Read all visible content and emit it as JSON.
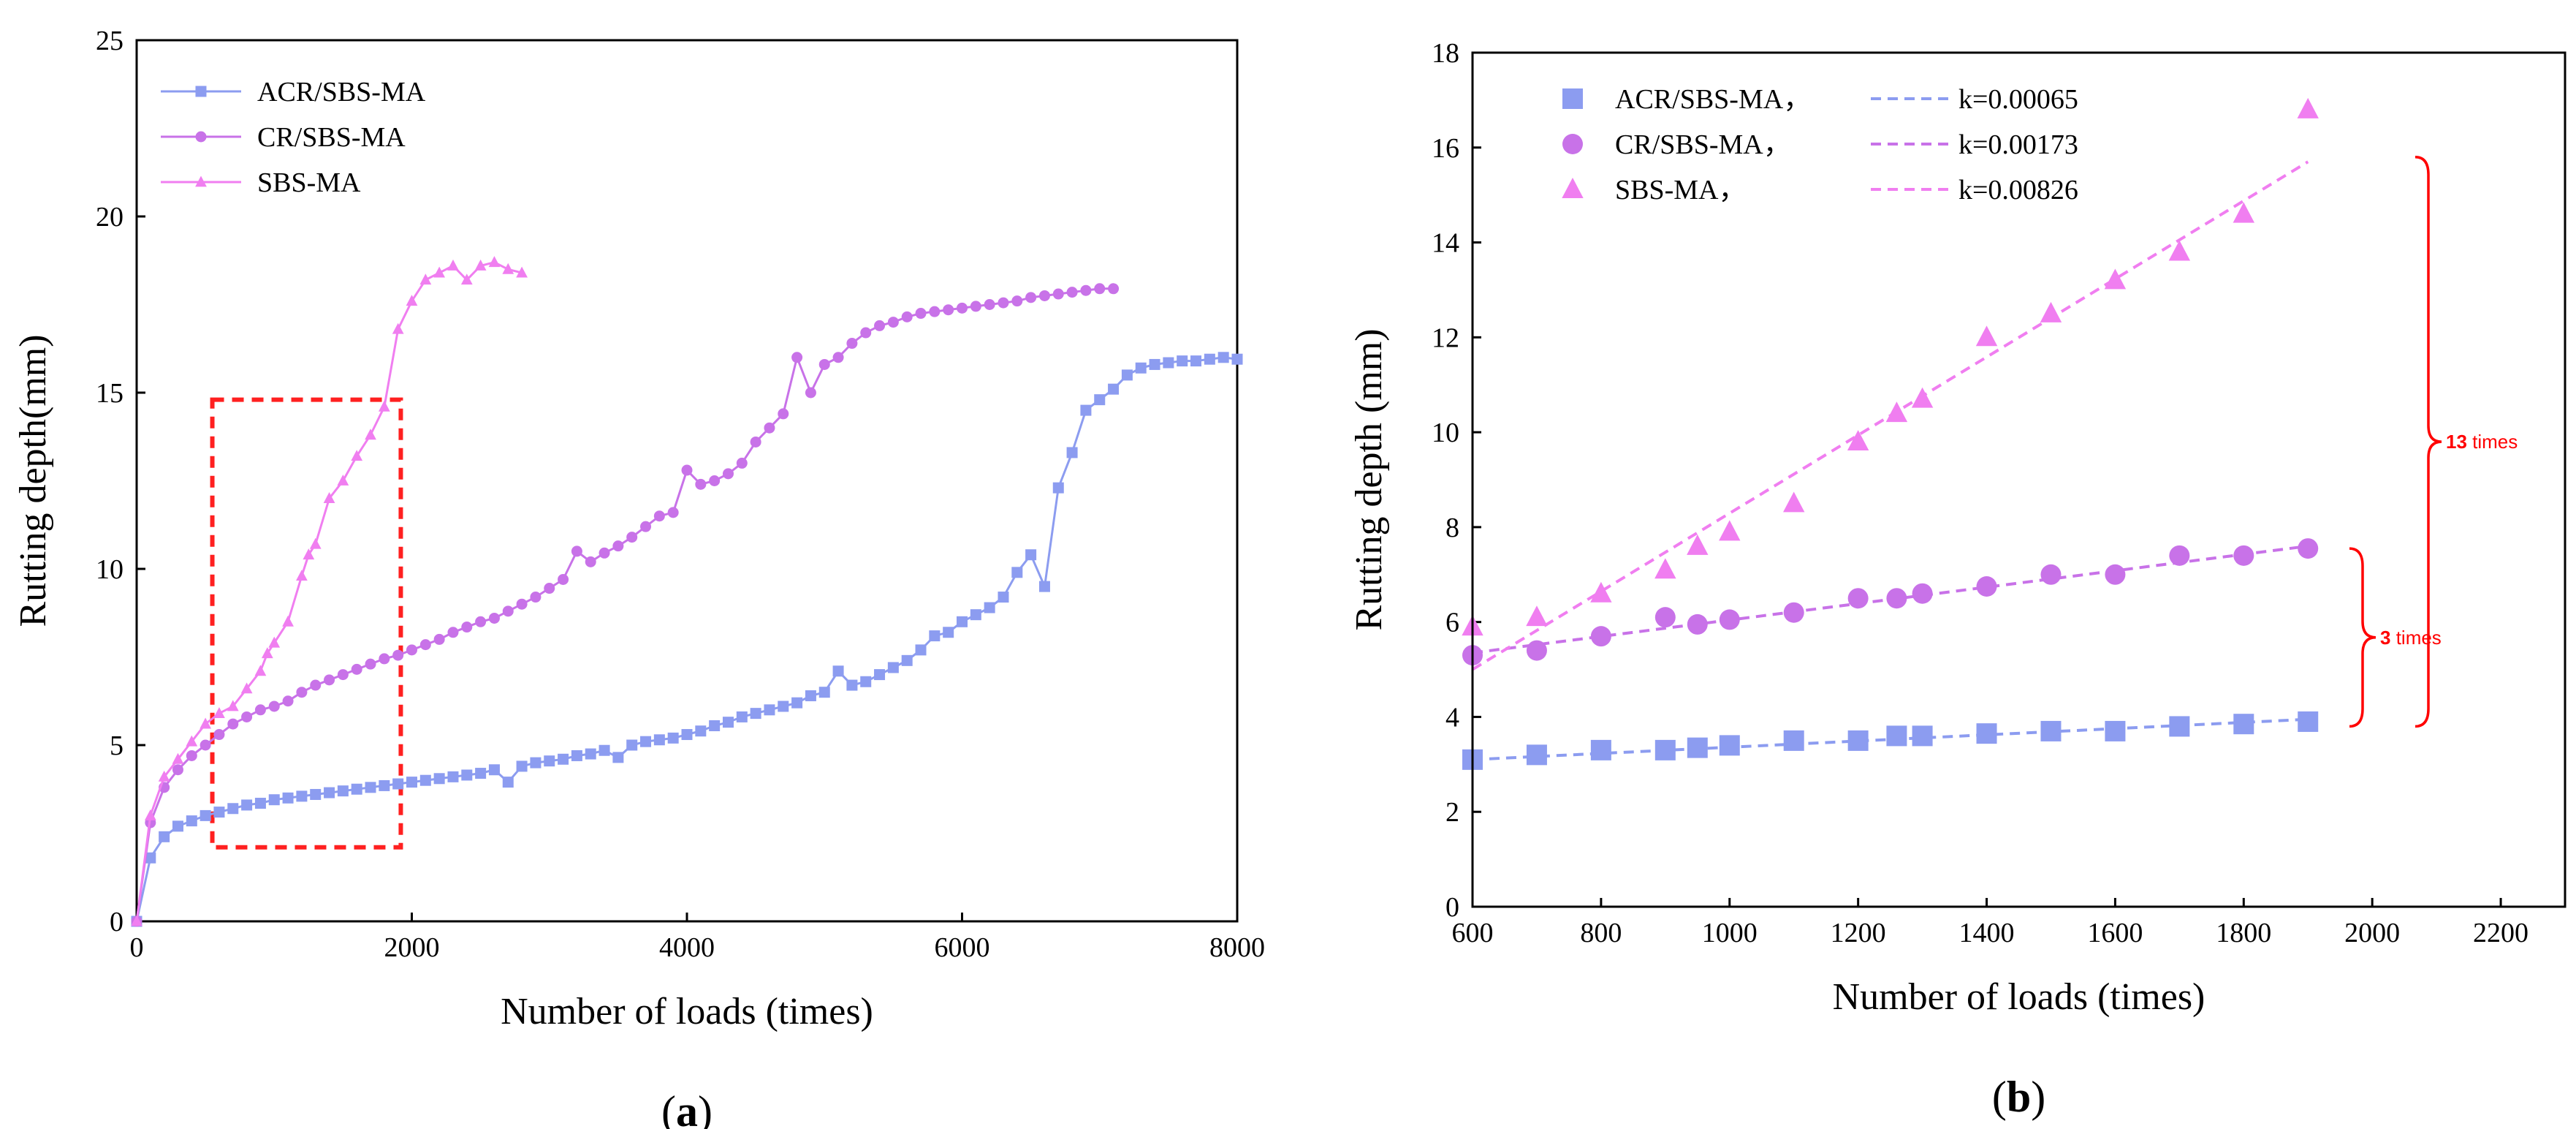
{
  "colors": {
    "acr": "#8c9cf0",
    "cr": "#c872e8",
    "sbs": "#f07ef0",
    "highlight": "#ff2020",
    "annotation": "#ff0000"
  },
  "chart_data": [
    {
      "type": "line",
      "panel_label_open": "(",
      "panel_label_letter": "a",
      "panel_label_close": ")",
      "xlabel": "Number of loads (times)",
      "ylabel": "Rutting depth(mm)",
      "xlim": [
        0,
        8000
      ],
      "ylim": [
        0,
        25
      ],
      "xticks": [
        0,
        2000,
        4000,
        6000,
        8000
      ],
      "yticks": [
        0,
        5,
        10,
        15,
        20,
        25
      ],
      "grid": false,
      "legend_placement": "top-left",
      "highlight_box": {
        "x": [
          550,
          1920
        ],
        "y": [
          2.1,
          14.8
        ]
      },
      "series": [
        {
          "name": "ACR/SBS-MA",
          "marker": "square",
          "x": [
            0,
            100,
            200,
            300,
            400,
            500,
            600,
            700,
            800,
            900,
            1000,
            1100,
            1200,
            1300,
            1400,
            1500,
            1600,
            1700,
            1800,
            1900,
            2000,
            2100,
            2200,
            2300,
            2400,
            2500,
            2600,
            2700,
            2800,
            2900,
            3000,
            3100,
            3200,
            3300,
            3400,
            3500,
            3600,
            3700,
            3800,
            3900,
            4000,
            4100,
            4200,
            4300,
            4400,
            4500,
            4600,
            4700,
            4800,
            4900,
            5000,
            5100,
            5200,
            5300,
            5400,
            5500,
            5600,
            5700,
            5800,
            5900,
            6000,
            6100,
            6200,
            6300,
            6400,
            6500,
            6600,
            6700,
            6800,
            6900,
            7000,
            7100,
            7200,
            7300,
            7400,
            7500,
            7600,
            7700,
            7800,
            7900,
            8000
          ],
          "y": [
            0,
            1.8,
            2.4,
            2.7,
            2.85,
            3.0,
            3.1,
            3.2,
            3.3,
            3.35,
            3.45,
            3.5,
            3.55,
            3.6,
            3.65,
            3.7,
            3.75,
            3.8,
            3.85,
            3.9,
            3.95,
            4.0,
            4.05,
            4.1,
            4.15,
            4.2,
            4.3,
            3.95,
            4.4,
            4.5,
            4.55,
            4.6,
            4.7,
            4.75,
            4.85,
            4.65,
            5.0,
            5.1,
            5.15,
            5.2,
            5.3,
            5.4,
            5.55,
            5.65,
            5.8,
            5.9,
            6.0,
            6.1,
            6.2,
            6.4,
            6.5,
            7.1,
            6.7,
            6.8,
            7.0,
            7.2,
            7.4,
            7.7,
            8.1,
            8.2,
            8.5,
            8.7,
            8.9,
            9.2,
            9.9,
            10.4,
            9.5,
            12.3,
            13.3,
            14.5,
            14.8,
            15.1,
            15.5,
            15.7,
            15.8,
            15.85,
            15.9,
            15.9,
            15.95,
            16.0,
            15.95
          ]
        },
        {
          "name": "CR/SBS-MA",
          "marker": "circle",
          "x": [
            0,
            100,
            200,
            300,
            400,
            500,
            600,
            700,
            800,
            900,
            1000,
            1100,
            1200,
            1300,
            1400,
            1500,
            1600,
            1700,
            1800,
            1900,
            2000,
            2100,
            2200,
            2300,
            2400,
            2500,
            2600,
            2700,
            2800,
            2900,
            3000,
            3100,
            3200,
            3300,
            3400,
            3500,
            3600,
            3700,
            3800,
            3900,
            4000,
            4100,
            4200,
            4300,
            4400,
            4500,
            4600,
            4700,
            4800,
            4900,
            5000,
            5100,
            5200,
            5300,
            5400,
            5500,
            5600,
            5700,
            5800,
            5900,
            6000,
            6100,
            6200,
            6300,
            6400,
            6500,
            6600,
            6700,
            6800,
            6900,
            7000,
            7100
          ],
          "y": [
            0,
            2.8,
            3.8,
            4.3,
            4.7,
            5.0,
            5.3,
            5.6,
            5.8,
            6.0,
            6.1,
            6.25,
            6.5,
            6.7,
            6.85,
            7.0,
            7.15,
            7.3,
            7.45,
            7.55,
            7.7,
            7.85,
            8.0,
            8.2,
            8.35,
            8.5,
            8.6,
            8.8,
            9.0,
            9.2,
            9.45,
            9.7,
            10.5,
            10.2,
            10.45,
            10.65,
            10.9,
            11.2,
            11.5,
            11.6,
            12.8,
            12.4,
            12.5,
            12.7,
            13.0,
            13.6,
            14.0,
            14.4,
            16.0,
            15.0,
            15.8,
            16.0,
            16.4,
            16.7,
            16.9,
            17.0,
            17.15,
            17.25,
            17.3,
            17.35,
            17.4,
            17.45,
            17.5,
            17.55,
            17.6,
            17.7,
            17.75,
            17.8,
            17.85,
            17.9,
            17.95,
            17.95
          ]
        },
        {
          "name": "SBS-MA",
          "marker": "triangle",
          "x": [
            0,
            100,
            200,
            300,
            400,
            500,
            600,
            700,
            800,
            900,
            950,
            1000,
            1100,
            1200,
            1250,
            1300,
            1400,
            1500,
            1600,
            1700,
            1800,
            1900,
            2000,
            2100,
            2200,
            2300,
            2400,
            2500,
            2600,
            2700,
            2800
          ],
          "y": [
            0,
            3.0,
            4.1,
            4.6,
            5.1,
            5.6,
            5.9,
            6.1,
            6.6,
            7.1,
            7.6,
            7.9,
            8.5,
            9.8,
            10.4,
            10.7,
            12.0,
            12.5,
            13.2,
            13.8,
            14.6,
            16.8,
            17.6,
            18.2,
            18.4,
            18.6,
            18.2,
            18.6,
            18.7,
            18.5,
            18.4
          ]
        }
      ]
    },
    {
      "type": "scatter",
      "panel_label_open": "(",
      "panel_label_letter": "b",
      "panel_label_close": ")",
      "xlabel": "Number of loads (times)",
      "ylabel": "Rutting depth (mm)",
      "xlim": [
        600,
        2300
      ],
      "ylim": [
        0,
        18
      ],
      "xticks": [
        600,
        800,
        1000,
        1200,
        1400,
        1600,
        1800,
        2000,
        2200
      ],
      "yticks": [
        0,
        2,
        4,
        6,
        8,
        10,
        12,
        14,
        16,
        18
      ],
      "grid": false,
      "legend_placement": "top-left",
      "series": [
        {
          "name": "ACR/SBS-MA，",
          "fit_label": "k=0.00065",
          "slope": 0.00065,
          "marker": "square",
          "fit_y": [
            3.1,
            3.95
          ],
          "x": [
            600,
            700,
            800,
            900,
            950,
            1000,
            1100,
            1200,
            1260,
            1300,
            1400,
            1500,
            1600,
            1700,
            1800,
            1900
          ],
          "y": [
            3.1,
            3.2,
            3.3,
            3.3,
            3.35,
            3.4,
            3.5,
            3.5,
            3.6,
            3.6,
            3.65,
            3.7,
            3.7,
            3.8,
            3.85,
            3.9
          ]
        },
        {
          "name": "CR/SBS-MA，",
          "fit_label": "k=0.00173",
          "slope": 0.00173,
          "marker": "circle",
          "fit_y": [
            5.35,
            7.6
          ],
          "x": [
            600,
            700,
            800,
            900,
            950,
            1000,
            1100,
            1200,
            1260,
            1300,
            1400,
            1500,
            1600,
            1700,
            1800,
            1900
          ],
          "y": [
            5.3,
            5.4,
            5.7,
            6.1,
            5.95,
            6.05,
            6.2,
            6.5,
            6.5,
            6.6,
            6.75,
            7.0,
            7.0,
            7.4,
            7.4,
            7.55
          ]
        },
        {
          "name": "SBS-MA，",
          "fit_label": "k=0.00826",
          "slope": 0.00826,
          "marker": "triangle",
          "fit_y": [
            5.0,
            15.7
          ],
          "x": [
            600,
            700,
            800,
            900,
            950,
            1000,
            1100,
            1200,
            1260,
            1300,
            1400,
            1500,
            1600,
            1700,
            1800,
            1900
          ],
          "y": [
            5.9,
            6.1,
            6.6,
            7.1,
            7.6,
            7.9,
            8.5,
            9.8,
            10.4,
            10.7,
            12.0,
            12.5,
            13.2,
            13.8,
            14.6,
            16.8
          ]
        }
      ],
      "annotations": [
        {
          "value": "3",
          "suffix": " times",
          "y_range": [
            3.8,
            7.55
          ]
        },
        {
          "value": "13",
          "suffix": " times",
          "y_range": [
            3.8,
            15.8
          ]
        }
      ]
    }
  ]
}
